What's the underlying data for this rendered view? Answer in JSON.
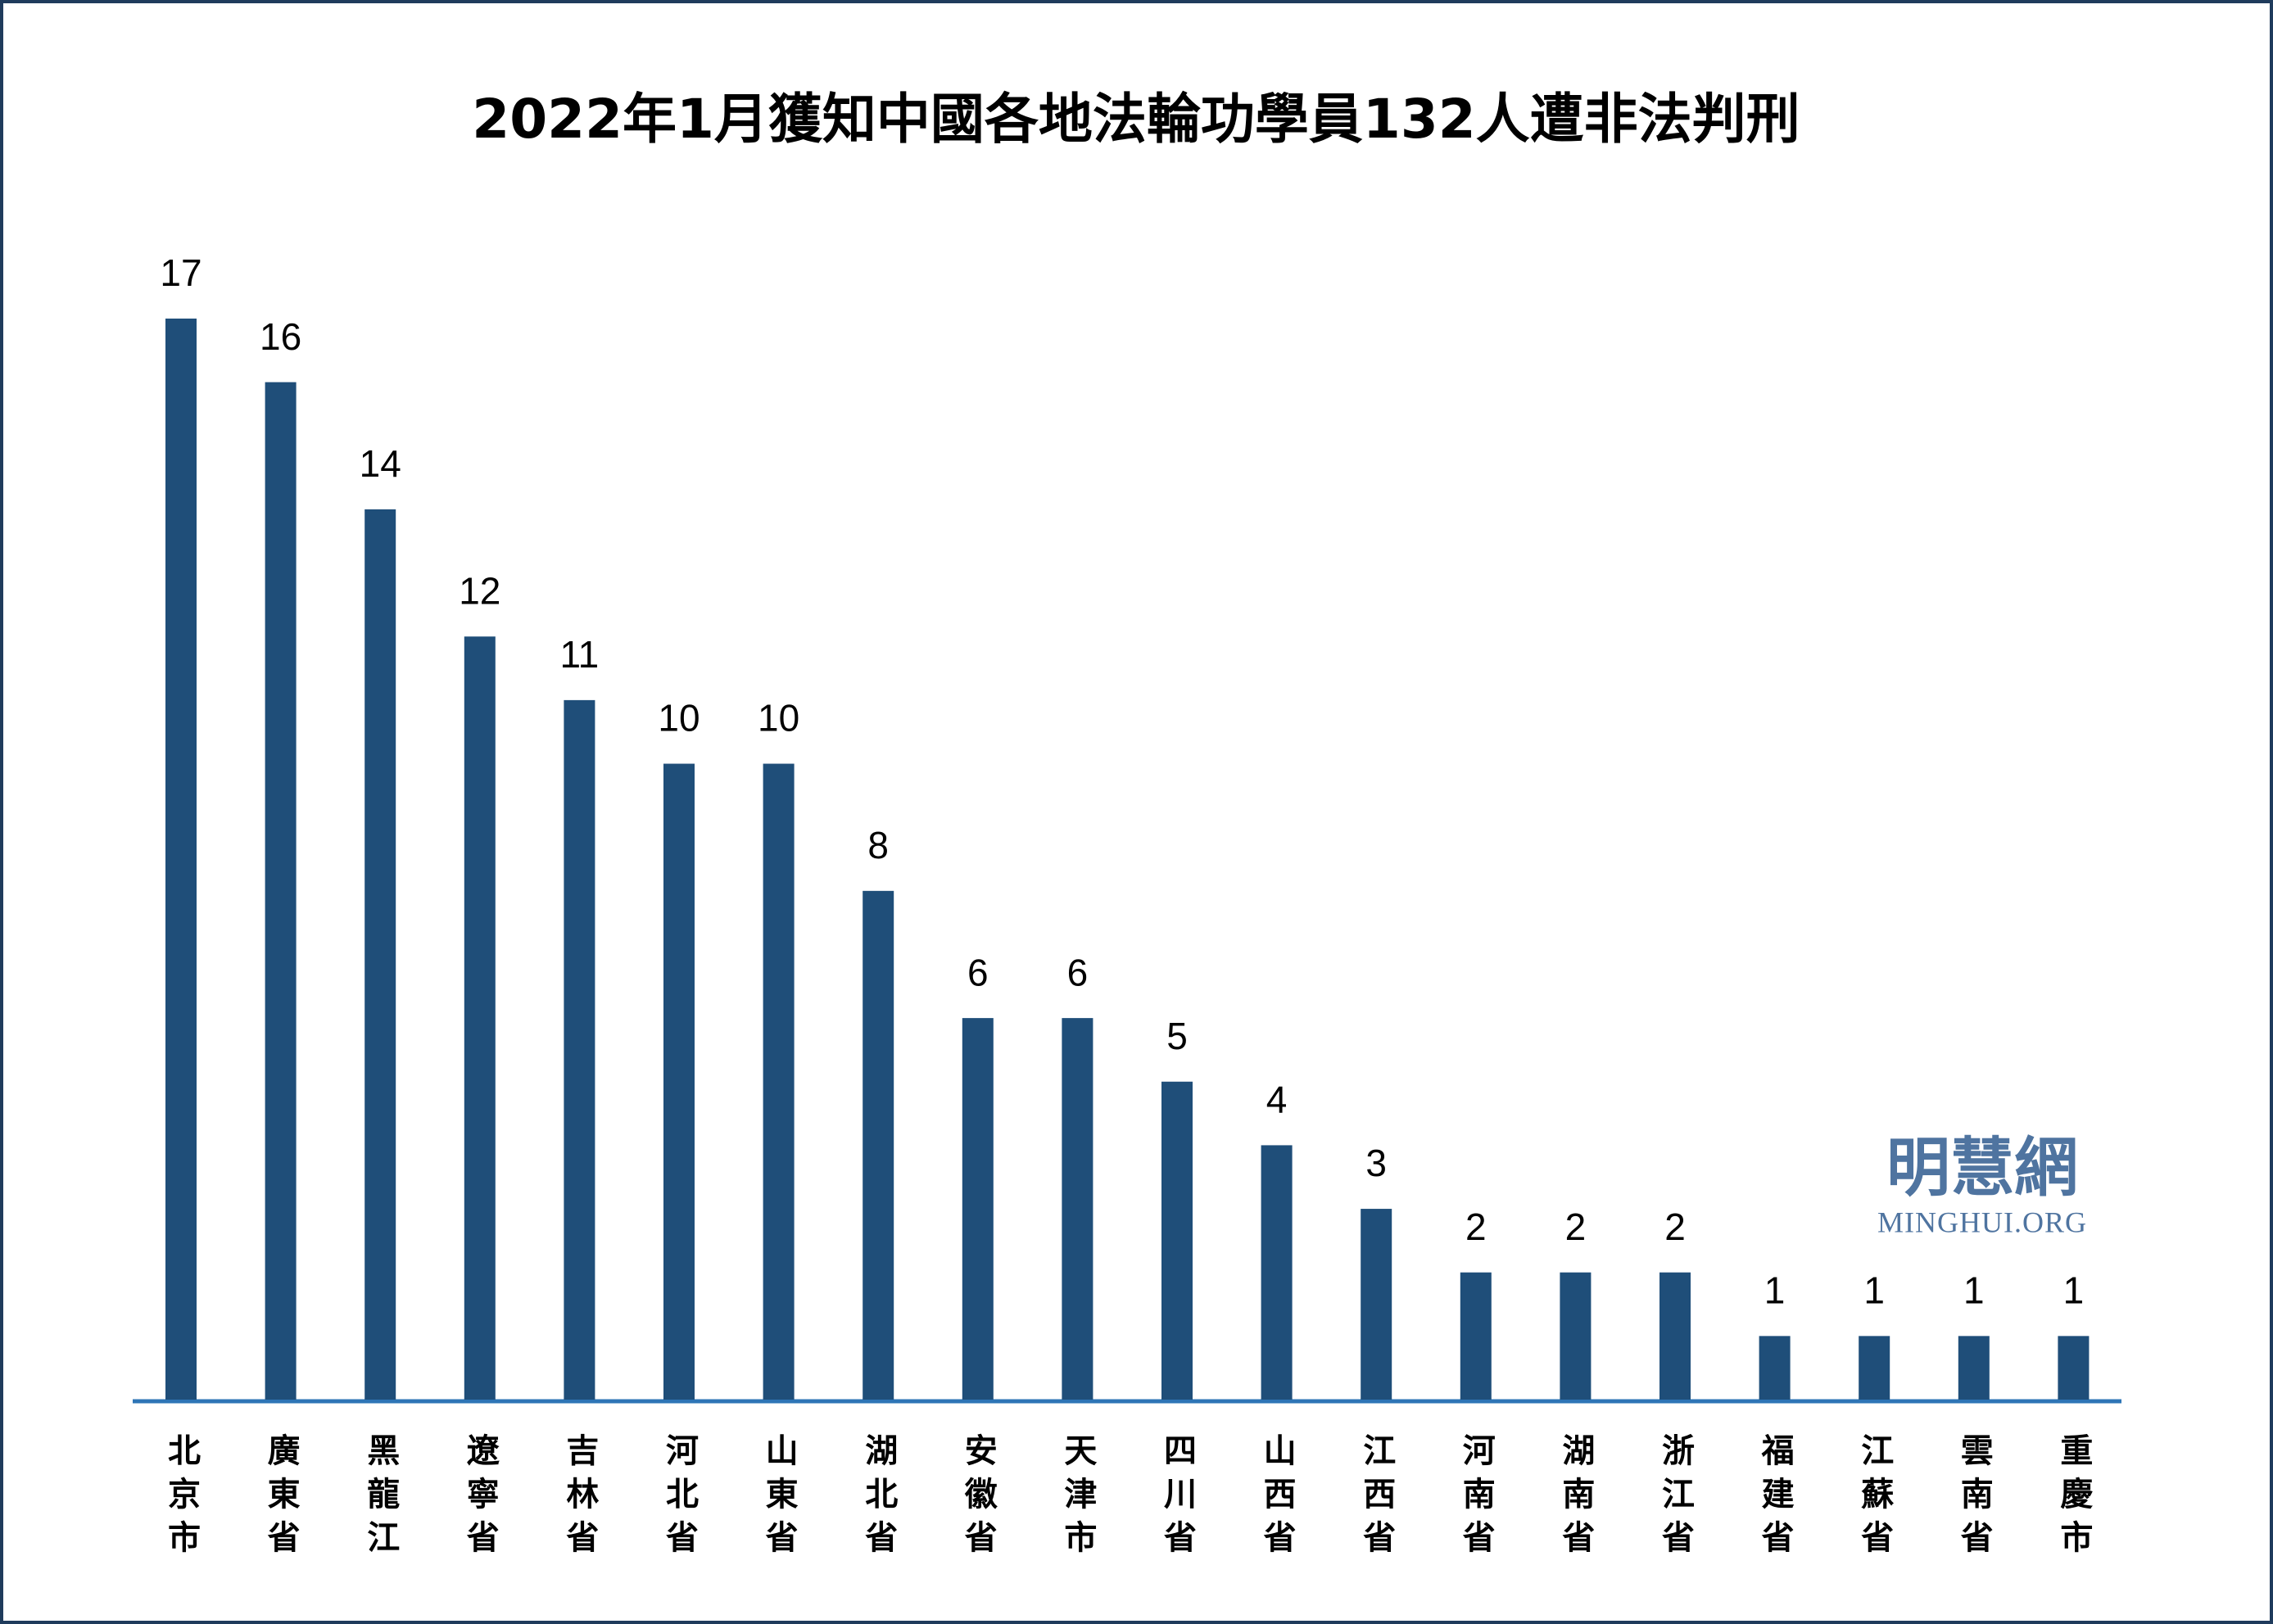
{
  "chart_data": {
    "type": "bar",
    "title": "2022年1月獲知中國各地法輪功學員132人遭非法判刑",
    "categories": [
      "北京市",
      "廣東省",
      "黑龍江",
      "遼寧省",
      "吉林省",
      "河北省",
      "山東省",
      "湖北省",
      "安徽省",
      "天津市",
      "四川省",
      "山西省",
      "江西省",
      "河南省",
      "湖南省",
      "浙江省",
      "福建省",
      "江蘇省",
      "雲南省",
      "重慶市"
    ],
    "values": [
      17,
      16,
      14,
      12,
      11,
      10,
      10,
      8,
      6,
      6,
      5,
      4,
      3,
      2,
      2,
      2,
      1,
      1,
      1,
      1
    ],
    "color": "#1f4e79"
  },
  "logo": {
    "name": "明慧網",
    "url": "MINGHUI.ORG"
  }
}
